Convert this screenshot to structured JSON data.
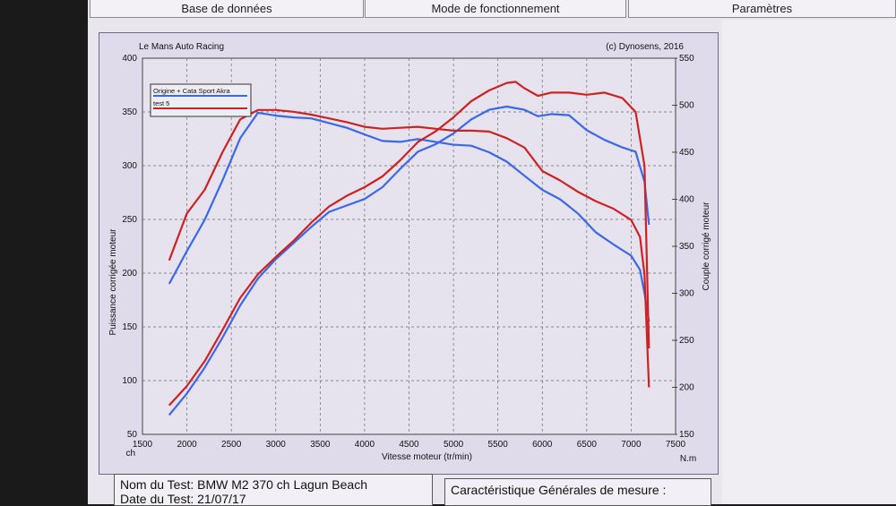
{
  "tabs": [
    "Base de données",
    "Mode de fonctionnement",
    "Paramètres"
  ],
  "chart_data": {
    "type": "line",
    "header_left": "Le Mans Auto Racing",
    "header_right": "(c) Dynosens, 2016",
    "xlabel": "Vitesse moteur (tr/min)",
    "ylabel_left": "Puissance corrigée moteur",
    "ylabel_right": "Couple corrigé moteur",
    "unit_left": "ch",
    "unit_right": "N.m",
    "xlim": [
      1500,
      7500
    ],
    "ylim_left": [
      50,
      400
    ],
    "ylim_right": [
      150,
      550
    ],
    "x_ticks": [
      1500,
      2000,
      2500,
      3000,
      3500,
      4000,
      4500,
      5000,
      5500,
      6000,
      6500,
      7000,
      7500
    ],
    "y_ticks_left": [
      50,
      100,
      150,
      200,
      250,
      300,
      350,
      400
    ],
    "y_ticks_right": [
      150,
      200,
      250,
      300,
      350,
      400,
      450,
      500,
      550
    ],
    "grid": true,
    "legend_position": "top-left",
    "series": [
      {
        "name": "Origine + Cata Sport Akra",
        "color": "#3a68e8",
        "power_x": [
          1800,
          2000,
          2200,
          2400,
          2600,
          2800,
          3000,
          3200,
          3400,
          3600,
          3800,
          4000,
          4200,
          4400,
          4600,
          4800,
          5000,
          5200,
          5400,
          5600,
          5800,
          5950,
          6100,
          6300,
          6500,
          6700,
          6900,
          7050,
          7150,
          7200
        ],
        "power_y": [
          68,
          88,
          112,
          140,
          170,
          195,
          213,
          228,
          243,
          257,
          263,
          269,
          280,
          297,
          313,
          320,
          330,
          343,
          352,
          355,
          352,
          346,
          348,
          347,
          333,
          324,
          317,
          313,
          285,
          245
        ],
        "torque_x": [
          1800,
          2000,
          2200,
          2400,
          2600,
          2800,
          3000,
          3200,
          3400,
          3600,
          3800,
          4000,
          4200,
          4400,
          4600,
          4800,
          5000,
          5200,
          5400,
          5600,
          5800,
          6000,
          6200,
          6400,
          6600,
          6800,
          7000,
          7100,
          7150,
          7200
        ],
        "torque_y": [
          310,
          345,
          378,
          420,
          465,
          492,
          489,
          487,
          486,
          481,
          476,
          469,
          462,
          461,
          464,
          461,
          458,
          457,
          450,
          440,
          425,
          410,
          400,
          385,
          365,
          352,
          340,
          325,
          300,
          270
        ]
      },
      {
        "name": "test 5",
        "color": "#cc2222",
        "power_x": [
          1800,
          2000,
          2200,
          2400,
          2600,
          2800,
          3000,
          3200,
          3400,
          3600,
          3800,
          4000,
          4200,
          4400,
          4600,
          4800,
          5000,
          5200,
          5400,
          5600,
          5700,
          5800,
          5950,
          6100,
          6300,
          6500,
          6700,
          6900,
          7050,
          7150,
          7200
        ],
        "power_y": [
          77,
          95,
          118,
          147,
          177,
          199,
          215,
          230,
          247,
          262,
          272,
          280,
          290,
          305,
          322,
          332,
          345,
          360,
          370,
          377,
          378,
          372,
          365,
          368,
          368,
          366,
          368,
          363,
          350,
          300,
          130
        ],
        "torque_x": [
          1800,
          2000,
          2200,
          2400,
          2600,
          2800,
          3000,
          3200,
          3400,
          3600,
          3800,
          4000,
          4200,
          4400,
          4600,
          4800,
          5000,
          5200,
          5400,
          5600,
          5800,
          6000,
          6200,
          6400,
          6600,
          6800,
          7000,
          7100,
          7150,
          7200
        ],
        "torque_y": [
          335,
          385,
          410,
          450,
          485,
          495,
          495,
          493,
          490,
          486,
          482,
          477,
          475,
          476,
          477,
          475,
          473,
          473,
          472,
          465,
          455,
          430,
          420,
          408,
          398,
          390,
          378,
          360,
          320,
          200
        ]
      }
    ]
  },
  "info_box": {
    "line1": "Nom du Test: BMW M2 370 ch Lagun Beach",
    "line2": "Date du Test: 21/07/17"
  },
  "spec_box": {
    "title": "Caractéristique Générales de mesure :"
  }
}
